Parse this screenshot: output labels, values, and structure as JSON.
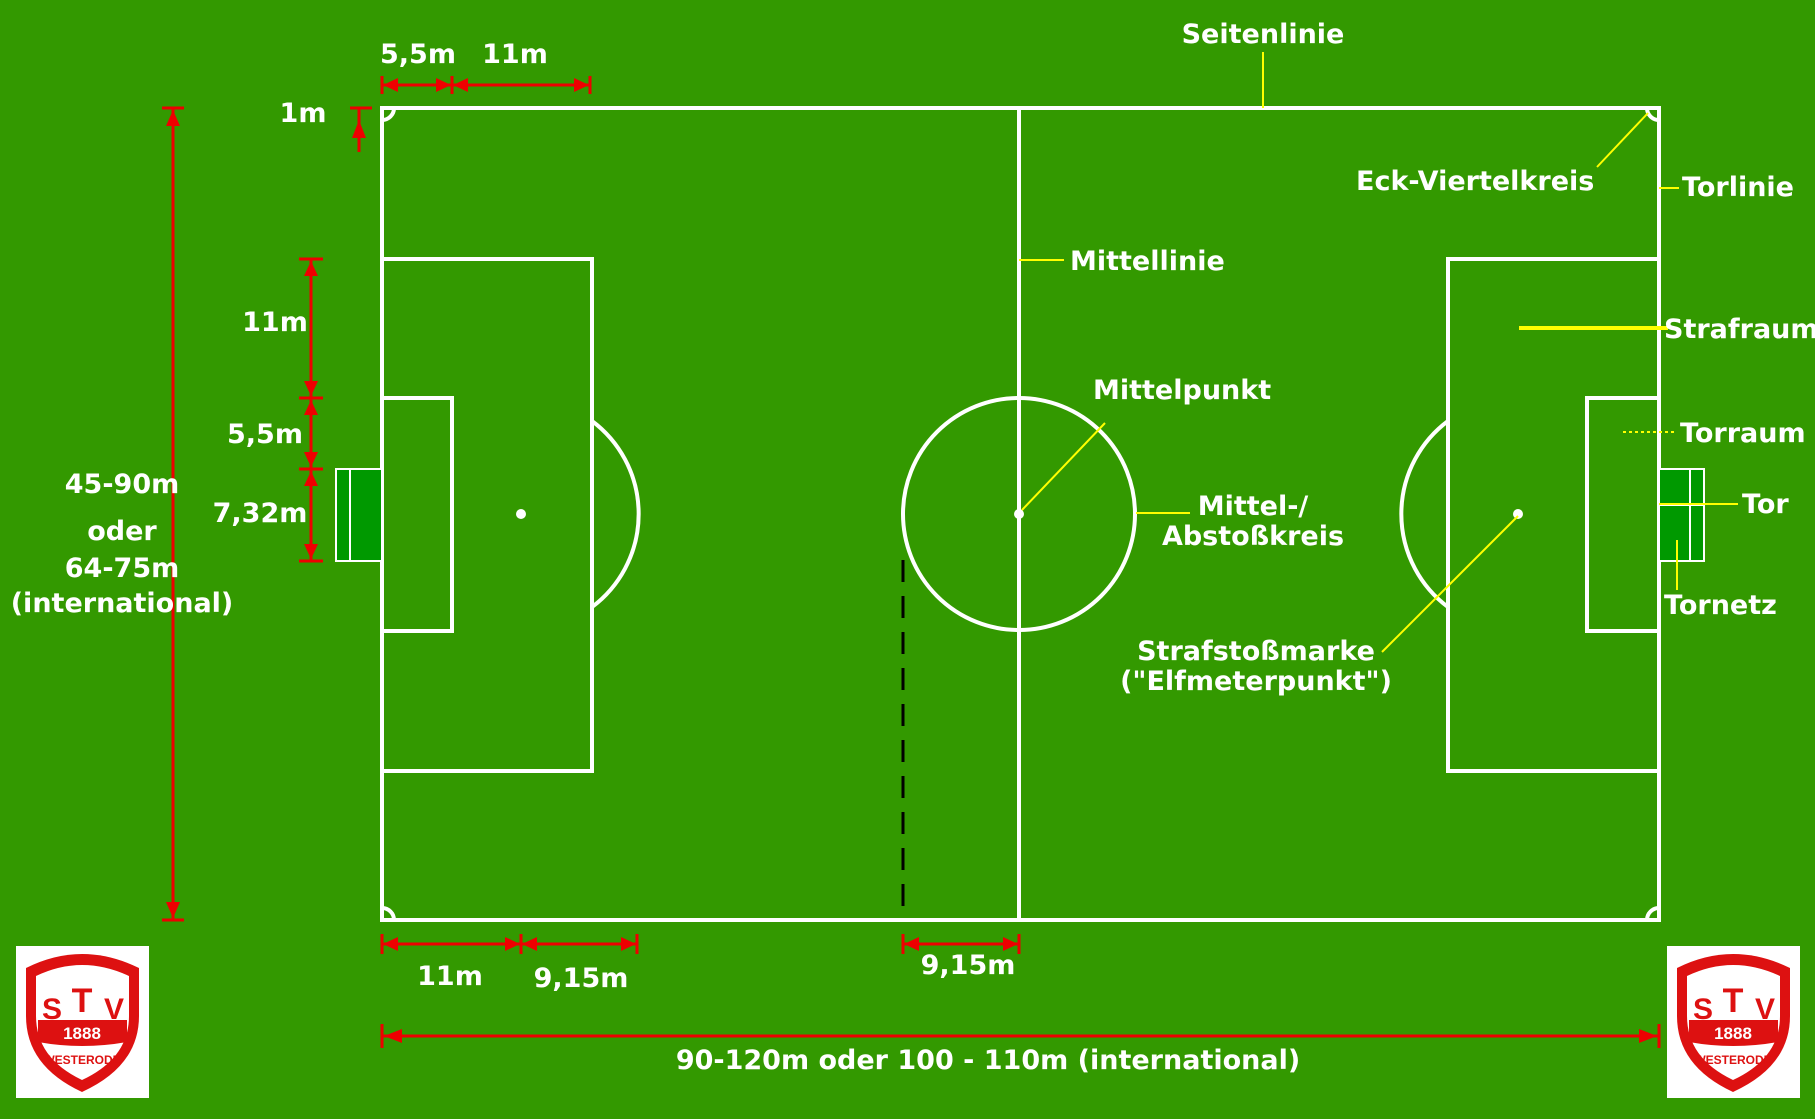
{
  "colors": {
    "field": "#339900",
    "lines": "#ffffff",
    "leaders": "#ffff00",
    "dimensions": "#ee0000",
    "goal": "#009900"
  },
  "labels": {
    "seitenlinie": "Seitenlinie",
    "eck_viertelkreis": "Eck-Viertelkreis",
    "torlinie": "Torlinie",
    "mittellinie": "Mittellinie",
    "strafraum": "Strafraum",
    "mittelpunkt": "Mittelpunkt",
    "torraum": "Torraum",
    "mittelkreis_1": "Mittel-/",
    "mittelkreis_2": "Abstoßkreis",
    "tor": "Tor",
    "tornetz": "Tornetz",
    "strafstossmarke_1": "Strafstoßmarke",
    "strafstossmarke_2": "(\"Elfmeterpunkt\")"
  },
  "dimensions": {
    "top_torraum": "5,5m",
    "top_strafraum": "11m",
    "corner": "1m",
    "left_strafraum": "11m",
    "left_torraum": "5,5m",
    "goal_width": "7,32m",
    "width_1": "45-90m",
    "width_2": "oder",
    "width_3": "64-75m",
    "width_4": "(international)",
    "bottom_penalty": "11m",
    "bottom_arc": "9,15m",
    "bottom_circle": "9,15m",
    "length": "90-120m oder 100 - 110m (international)"
  },
  "logo": {
    "letter_t": "T",
    "letter_s": "S",
    "letter_v": "V",
    "year": "1888",
    "town": "WESTERODE"
  }
}
